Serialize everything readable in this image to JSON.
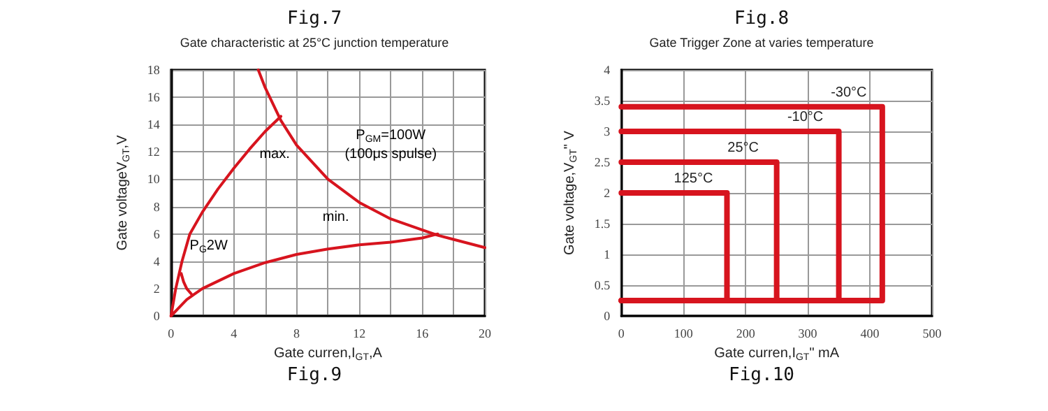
{
  "chart_data": [
    {
      "type": "line",
      "title": "Fig.7",
      "subtitle": "Gate characteristic at 25°C junction temperature",
      "xlabel": "Gate curren,I$_{GT}$,A",
      "ylabel": "Gate voltageV$_{GT}$,V",
      "series": [
        {
          "color": "#d7141e",
          "x": [
            5.56,
            6,
            7,
            8,
            10,
            12,
            14,
            16,
            17,
            18,
            20
          ],
          "values": [
            18,
            16.7,
            14.3,
            12.5,
            10,
            8.3,
            7.1,
            6.3,
            5.9,
            5.6,
            5
          ]
        },
        {
          "color": "#d7141e",
          "x": [
            0,
            0.3,
            0.7,
            1.2,
            2,
            3,
            4,
            5,
            6,
            7
          ],
          "values": [
            0,
            2,
            4,
            6,
            7.6,
            9.3,
            10.8,
            12.2,
            13.5,
            14.6
          ]
        },
        {
          "color": "#d7141e",
          "x": [
            0,
            1,
            1.5,
            2,
            4,
            6,
            8,
            10,
            12,
            14,
            16,
            17
          ],
          "values": [
            0,
            1.2,
            1.6,
            2,
            3.1,
            3.9,
            4.5,
            4.9,
            5.2,
            5.4,
            5.7,
            6
          ]
        },
        {
          "color": "#d7141e",
          "x": [
            0.65,
            0.8,
            1,
            1.3
          ],
          "values": [
            3.1,
            2.5,
            2,
            1.6
          ]
        }
      ],
      "xlim": [
        0,
        20
      ],
      "xticks": [
        0,
        {
          "value": 2,
          "label": null
        },
        4,
        {
          "value": 6,
          "label": null
        },
        8,
        {
          "value": 10,
          "label": null
        },
        12,
        {
          "value": 14,
          "label": null
        },
        16,
        {
          "value": 18,
          "label": null
        },
        20
      ],
      "ylim": [
        0,
        18
      ],
      "yticks": [
        0,
        2,
        4,
        6,
        8,
        10,
        12,
        14,
        16,
        18
      ],
      "grid": true,
      "marker": "none",
      "line_style": "solid",
      "annotations": [
        "P$_{GM}$=100W",
        "(100μs spulse)",
        "max.",
        "min.",
        "P$_{G}$2W",
        "Fig.9"
      ]
    },
    {
      "type": "line",
      "title": "Fig.8",
      "subtitle": "Gate Trigger Zone at varies temperature",
      "xlabel": "Gate curren,I$_{GT}$\" mA",
      "ylabel": "Gate voltage,V$_{GT}$\" V",
      "series": [
        {
          "name": "-30°C",
          "color": "#d7141e",
          "x": [
            0,
            420,
            420,
            0
          ],
          "values": [
            3.4,
            3.4,
            0.25,
            0.25
          ]
        },
        {
          "name": "-10°C",
          "color": "#d7141e",
          "x": [
            0,
            350,
            350,
            0
          ],
          "values": [
            3,
            3,
            0.25,
            0.25
          ]
        },
        {
          "name": "25°C",
          "color": "#d7141e",
          "x": [
            0,
            250,
            250,
            0
          ],
          "values": [
            2.5,
            2.5,
            0.25,
            0.25
          ]
        },
        {
          "name": "125°C",
          "color": "#d7141e",
          "x": [
            0,
            170,
            170,
            0
          ],
          "values": [
            2,
            2,
            0.25,
            0.25
          ]
        }
      ],
      "xlim": [
        0,
        500
      ],
      "xticks": [
        0,
        100,
        200,
        300,
        400,
        500
      ],
      "ylim": [
        0,
        4
      ],
      "yticks": [
        0,
        0.5,
        1,
        1.5,
        2,
        2.5,
        3,
        3.5,
        4
      ],
      "grid": true,
      "marker": "none",
      "line_style": "solid",
      "annotations": [
        "Fig.10"
      ]
    }
  ]
}
